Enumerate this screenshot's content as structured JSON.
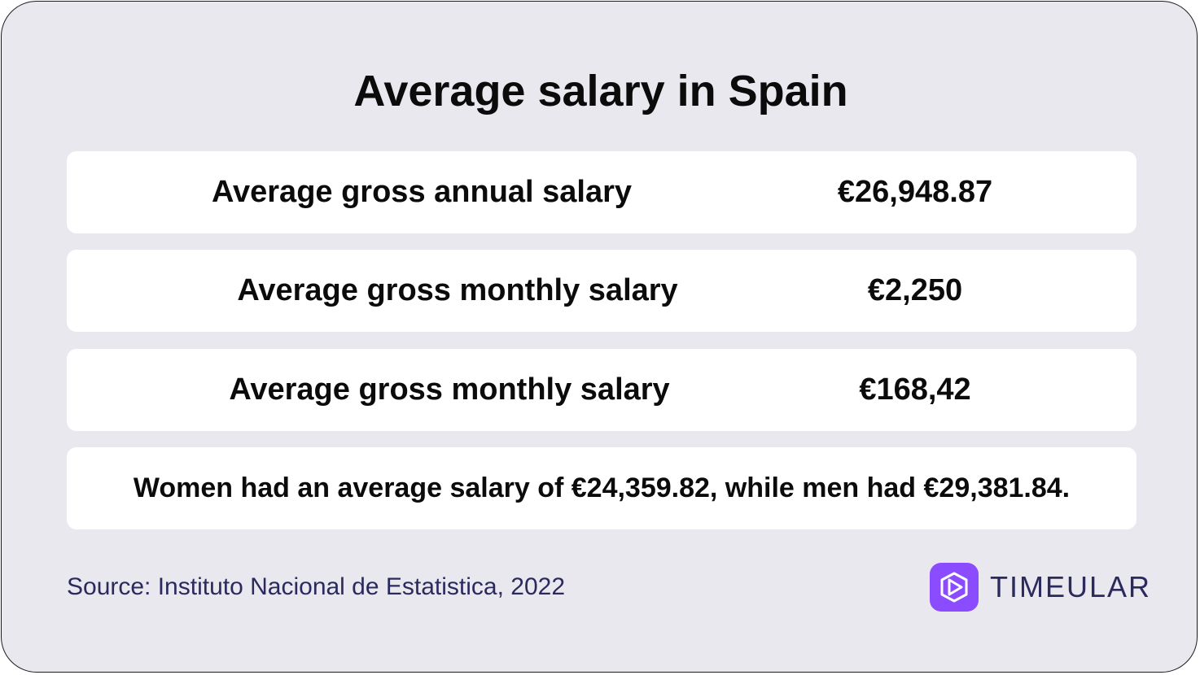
{
  "title": "Average salary in Spain",
  "rows": [
    {
      "label": "Average gross annual salary",
      "value": "€26,948.87"
    },
    {
      "label": "Average gross monthly salary",
      "value": "€2,250"
    },
    {
      "label": "Average gross monthly salary",
      "value": "€168,42"
    }
  ],
  "note": "Women had an average salary of €24,359.82, while men had €29,381.84.",
  "source": "Source: Instituto Nacional de Estatistica, 2022",
  "logo": {
    "icon": "play-hexagon-icon",
    "text": "TIMEULAR",
    "brand_color": "#8b4bff"
  },
  "colors": {
    "background": "#e9e8ef",
    "row_background": "#ffffff",
    "text": "#0b0b0b",
    "source_text": "#2a2a5c"
  }
}
